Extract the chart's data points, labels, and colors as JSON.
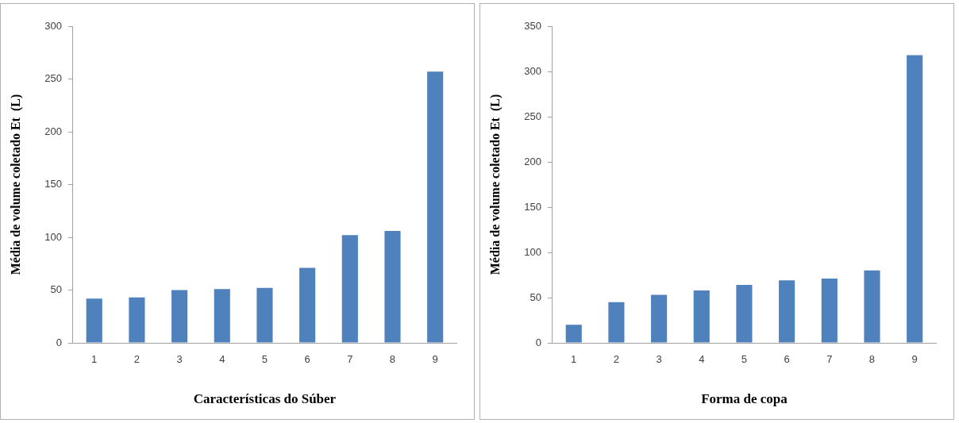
{
  "chart_data": [
    {
      "type": "bar",
      "xlabel": "Características do Súber",
      "ylabel": "Média de volume coletado Et  (L)",
      "categories": [
        "1",
        "2",
        "3",
        "4",
        "5",
        "6",
        "7",
        "8",
        "9"
      ],
      "values": [
        42,
        43,
        50,
        51,
        52,
        71,
        102,
        106,
        257
      ],
      "color": "#4f81bd",
      "ylim": [
        0,
        300
      ],
      "yticks": [
        0,
        50,
        100,
        150,
        200,
        250,
        300
      ],
      "grid": false,
      "legend": false
    },
    {
      "type": "bar",
      "xlabel": "Forma de copa",
      "ylabel": "Média de volume coletado Et  (L)",
      "categories": [
        "1",
        "2",
        "3",
        "4",
        "5",
        "6",
        "7",
        "8",
        "9"
      ],
      "values": [
        20,
        45,
        53,
        58,
        64,
        69,
        71,
        80,
        318
      ],
      "color": "#4f81bd",
      "ylim": [
        0,
        350
      ],
      "yticks": [
        0,
        50,
        100,
        150,
        200,
        250,
        300,
        350
      ],
      "grid": false,
      "legend": false
    }
  ]
}
